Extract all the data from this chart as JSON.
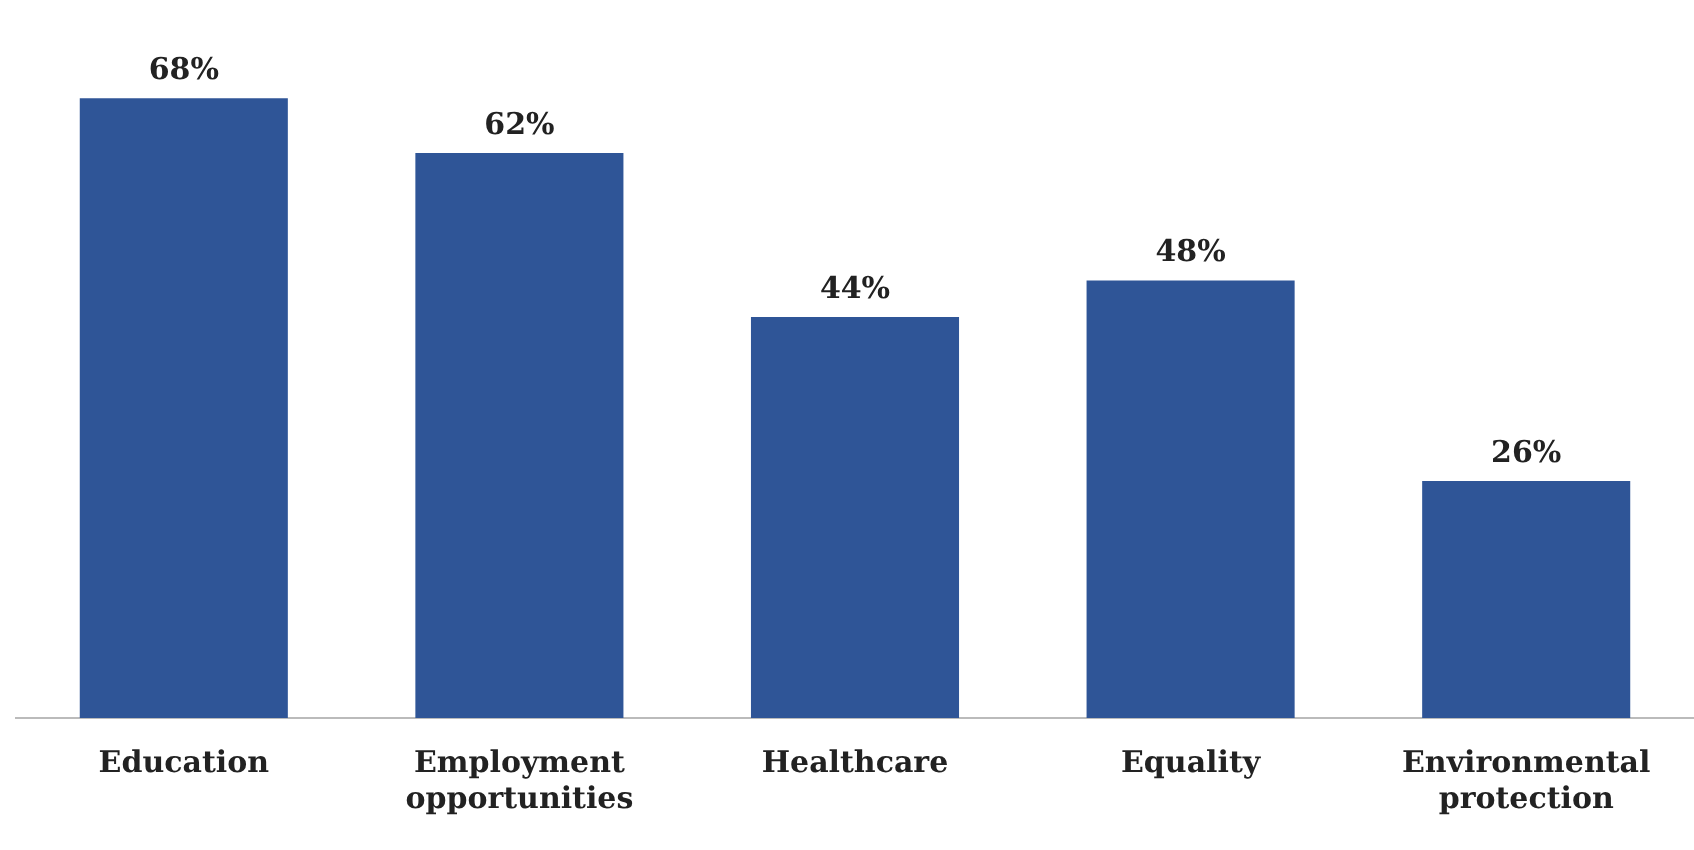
{
  "chart_data": {
    "type": "bar",
    "categories": [
      "Education",
      "Employment opportunities",
      "Healthcare",
      "Equality",
      "Environmental protection"
    ],
    "values": [
      68,
      62,
      44,
      48,
      26
    ],
    "color": "#2f5597",
    "value_labels": [
      "68%",
      "62%",
      "44%",
      "48%",
      "26%"
    ],
    "grid": false,
    "legend": false,
    "tick_labels": "x"
  }
}
